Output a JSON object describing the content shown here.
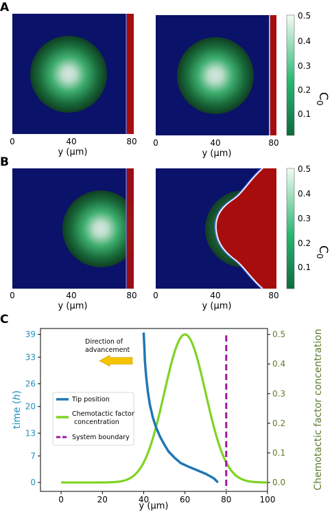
{
  "panels": {
    "A": {
      "label": "A"
    },
    "B": {
      "label": "B"
    },
    "C": {
      "label": "C"
    }
  },
  "colorbar": {
    "label": "C",
    "label_subscript": "0",
    "ticks": [
      "0.5",
      "0.4",
      "0.3",
      "0.2",
      "0.1"
    ],
    "range": [
      0.0,
      0.5
    ],
    "colors": {
      "low": "#0f6b3e",
      "mid": "#2bb673",
      "high": "#f4fbf4"
    }
  },
  "heatmaps": {
    "xlabel": "y (μm)",
    "xticks": [
      "0",
      "40",
      "80"
    ],
    "colors": {
      "background": "#0b1269",
      "wall": "#a80d0d",
      "boundary_line": "#5a8cff"
    }
  },
  "chart_data": {
    "type": "line",
    "xlabel": "y (μm)",
    "ylabel_left": "time (h)",
    "ylabel_left_parts": {
      "pre": "time (",
      "var": "h",
      "post": ")"
    },
    "ylabel_right": "Chemotactic factor concentration",
    "xlim": [
      -10,
      100
    ],
    "xticks": [
      0,
      20,
      40,
      60,
      80,
      100
    ],
    "ylim_right": [
      -0.03,
      0.52
    ],
    "yticks_left": [
      0,
      7,
      13,
      20,
      26,
      33,
      39
    ],
    "yticks_right": [
      0.0,
      0.1,
      0.2,
      0.3,
      0.4,
      0.5
    ],
    "annotation": {
      "line1": "Direction of",
      "line2": "advancement"
    },
    "series": [
      {
        "name": "Tip position",
        "color": "#1f77b4",
        "axis": "left",
        "points": [
          [
            40,
            39.5
          ],
          [
            40.3,
            36
          ],
          [
            40.6,
            32
          ],
          [
            41.2,
            28
          ],
          [
            42,
            24
          ],
          [
            43,
            20.5
          ],
          [
            44.5,
            17
          ],
          [
            46,
            14.5
          ],
          [
            48,
            12
          ],
          [
            50,
            10
          ],
          [
            52,
            8.2
          ],
          [
            55,
            6.5
          ],
          [
            58,
            5.1
          ],
          [
            62,
            4.1
          ],
          [
            66,
            3.2
          ],
          [
            70,
            2.3
          ],
          [
            74,
            1.1
          ],
          [
            76,
            0
          ]
        ]
      },
      {
        "name": "Chemotactic factor\n concentration",
        "legend_lines": [
          "Chemotactic factor",
          " concentration"
        ],
        "color": "#7ed321",
        "axis": "right",
        "gaussian": {
          "x_min": 0,
          "x_max": 100,
          "center": 60,
          "amplitude": 0.5,
          "sigma": 10
        }
      },
      {
        "name": "System boundary",
        "color": "#a0179f",
        "axis": "vertical",
        "x": 80
      }
    ]
  }
}
